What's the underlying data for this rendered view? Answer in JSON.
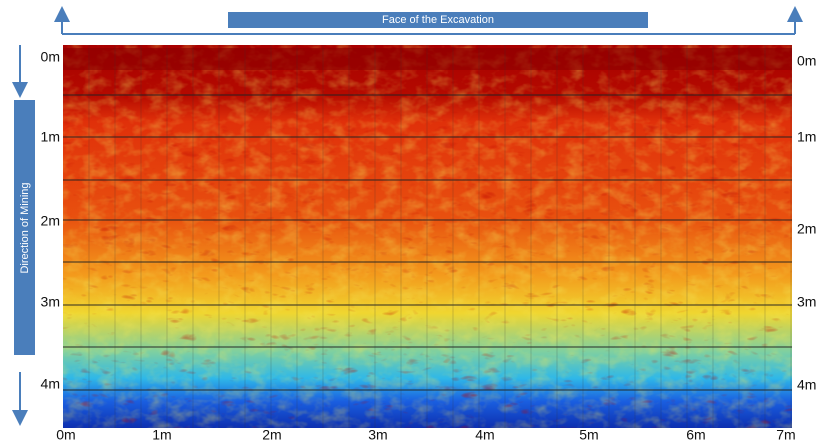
{
  "banner": {
    "title": "Face of the Excavation"
  },
  "side_label": "Direction of Mining",
  "left_axis": [
    "0m",
    "1m",
    "2m",
    "3m",
    "4m"
  ],
  "right_axis": [
    "0m",
    "1m",
    "2m",
    "3m",
    "4m"
  ],
  "bottom_axis": [
    "0m",
    "1m",
    "2m",
    "3m",
    "4m",
    "5m",
    "6m",
    "7m"
  ]
}
